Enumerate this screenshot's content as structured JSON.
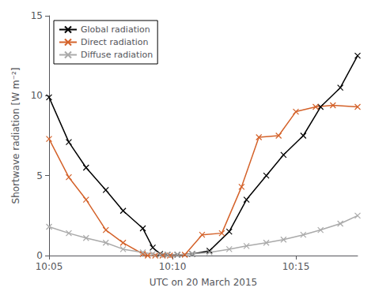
{
  "chart_data": {
    "type": "line",
    "xlabel": "UTC on 20 March 2015",
    "ylabel": "Shortwave radiation [W m⁻²]",
    "xlim": [
      605,
      617.5
    ],
    "ylim": [
      0,
      15
    ],
    "xticks": [
      {
        "value": 605,
        "label": "10:05"
      },
      {
        "value": 610,
        "label": "10:10"
      },
      {
        "value": 615,
        "label": "10:15"
      }
    ],
    "yticks": [
      0,
      5,
      10,
      15
    ],
    "grid": false,
    "legend": "upper left",
    "marker": "x",
    "series": [
      {
        "name": "Global radiation",
        "color": "#000000",
        "x": [
          605.0,
          605.8,
          606.5,
          607.3,
          608.0,
          608.8,
          609.2,
          609.5,
          609.8,
          610.2,
          610.8,
          611.5,
          612.3,
          613.0,
          613.8,
          614.5,
          615.3,
          616.0,
          616.8,
          617.5
        ],
        "values": [
          9.9,
          7.1,
          5.5,
          4.1,
          2.8,
          1.7,
          0.5,
          0.1,
          0.05,
          0.05,
          0.1,
          0.3,
          1.5,
          3.5,
          5.0,
          6.3,
          7.5,
          9.3,
          10.5,
          12.5
        ]
      },
      {
        "name": "Direct radiation",
        "color": "#D4622A",
        "x": [
          605.0,
          605.8,
          606.5,
          607.3,
          608.0,
          608.8,
          609.0,
          609.3,
          609.6,
          609.9,
          610.5,
          611.2,
          612.0,
          612.8,
          613.5,
          614.3,
          615.0,
          615.8,
          616.5,
          617.5
        ],
        "values": [
          7.3,
          4.9,
          3.5,
          1.6,
          0.8,
          0.1,
          0.0,
          0.0,
          0.0,
          0.0,
          0.05,
          1.3,
          1.4,
          4.3,
          7.4,
          7.5,
          9.0,
          9.3,
          9.4,
          9.3
        ]
      },
      {
        "name": "Diffuse radiation",
        "color": "#AAAAAA",
        "x": [
          605.0,
          605.8,
          606.5,
          607.3,
          608.0,
          608.8,
          609.2,
          609.5,
          609.8,
          610.2,
          610.8,
          611.5,
          612.3,
          613.0,
          613.8,
          614.5,
          615.3,
          616.0,
          616.8,
          617.5
        ],
        "values": [
          1.8,
          1.4,
          1.1,
          0.8,
          0.4,
          0.2,
          0.1,
          0.05,
          0.05,
          0.05,
          0.1,
          0.2,
          0.4,
          0.6,
          0.8,
          1.0,
          1.3,
          1.6,
          2.0,
          2.5
        ]
      }
    ]
  }
}
